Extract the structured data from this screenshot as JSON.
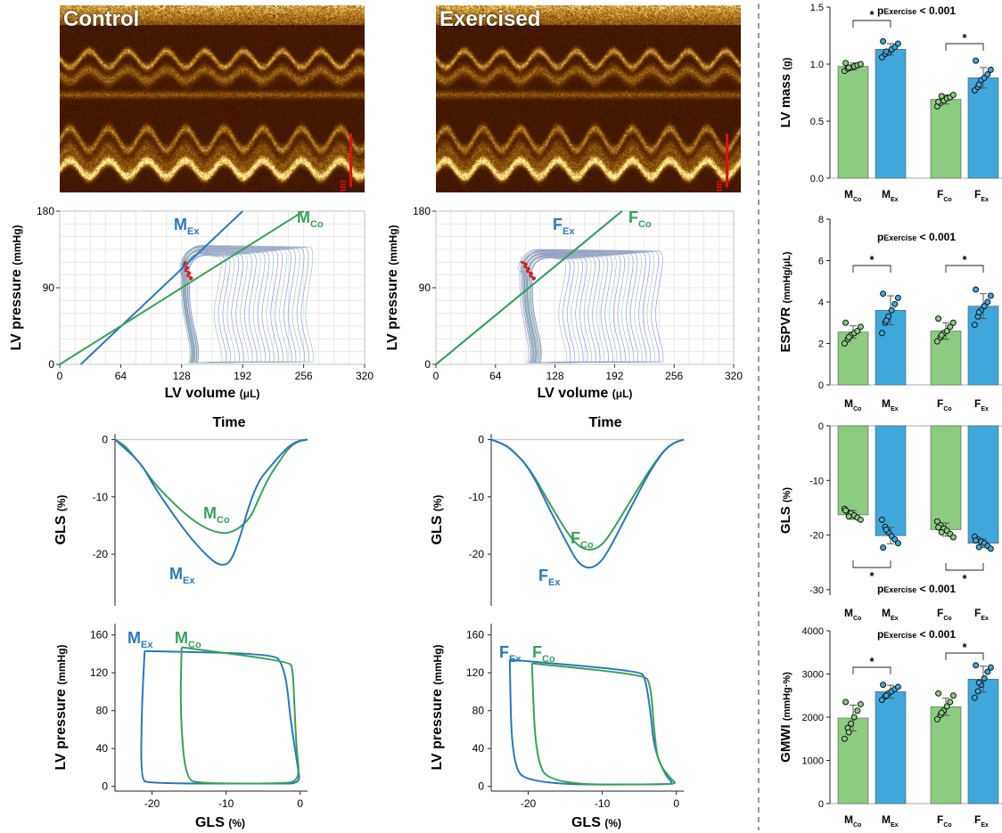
{
  "colors": {
    "male_exercised": "#2a78b8",
    "male_control": "#3aa05a",
    "female_exercised": "#2a78b8",
    "female_control": "#3aa05a",
    "bar_control": "#8ccc80",
    "bar_exercised": "#3ea8dc",
    "sig": "#000000"
  },
  "echo": {
    "left_label": "Control",
    "right_label": "Exercised",
    "scale_label": "5 mm"
  },
  "chart_data": [
    {
      "id": "pv-male",
      "type": "line",
      "xlabel": "LV volume",
      "xlabel_unit": "(μL)",
      "ylabel": "LV pressure",
      "ylabel_unit": "(mmHg)",
      "xticks": [
        "0",
        "64",
        "128",
        "192",
        "256",
        "320"
      ],
      "yticks": [
        "0",
        "90",
        "180"
      ],
      "xlim": [
        0,
        320
      ],
      "ylim": [
        0,
        180
      ],
      "series": [
        {
          "name": "M",
          "sub": "Ex",
          "color_key": "male_exercised",
          "line": {
            "x": [
              22,
              192
            ],
            "y": [
              0,
              180
            ]
          }
        },
        {
          "name": "M",
          "sub": "Co",
          "color_key": "male_control",
          "line": {
            "x": [
              0,
              256
            ],
            "y": [
              0,
              180
            ]
          }
        }
      ],
      "loops": {
        "count": 22,
        "ed_range": [
          172,
          268
        ],
        "es_range": [
          128,
          140
        ],
        "peak_range": [
          128,
          140
        ]
      }
    },
    {
      "id": "pv-female",
      "type": "line",
      "xlabel": "LV volume",
      "xlabel_unit": "(μL)",
      "ylabel": "LV pressure",
      "ylabel_unit": "(mmHg)",
      "xticks": [
        "0",
        "64",
        "128",
        "192",
        "256",
        "320"
      ],
      "yticks": [
        "0",
        "90",
        "180"
      ],
      "xlim": [
        0,
        320
      ],
      "ylim": [
        0,
        180
      ],
      "series": [
        {
          "name": "F",
          "sub": "Ex",
          "color_key": "female_exercised",
          "line": {
            "x": [
              0,
              200
            ],
            "y": [
              0,
              180
            ]
          }
        },
        {
          "name": "F",
          "sub": "Co",
          "color_key": "female_control",
          "line": {
            "x": [
              0,
              200
            ],
            "y": [
              0,
              180
            ]
          }
        }
      ],
      "loops": {
        "count": 24,
        "ed_range": [
          142,
          246
        ],
        "es_range": [
          92,
          110
        ],
        "peak_range": [
          125,
          135
        ]
      }
    },
    {
      "id": "gls-male",
      "type": "line",
      "title": "Time",
      "ylabel": "GLS",
      "ylabel_unit": "(%)",
      "yticks": [
        "0",
        "-10",
        "-20"
      ],
      "ylim": [
        -29,
        1
      ],
      "series": [
        {
          "name": "M",
          "sub": "Co",
          "color_key": "male_control",
          "x": [
            0,
            5,
            10,
            15,
            20,
            30,
            40,
            50,
            60,
            70,
            75,
            80,
            85,
            90,
            95,
            100
          ],
          "y": [
            0,
            -1,
            -3,
            -5,
            -7.5,
            -11,
            -14,
            -16,
            -16.5,
            -14,
            -10,
            -6.5,
            -4,
            -1.5,
            -0.3,
            0
          ]
        },
        {
          "name": "M",
          "sub": "Ex",
          "color_key": "male_exercised",
          "x": [
            0,
            5,
            10,
            15,
            20,
            30,
            40,
            50,
            55,
            60,
            65,
            70,
            75,
            80,
            85,
            90,
            95,
            100
          ],
          "y": [
            0,
            -1.5,
            -3,
            -5,
            -8,
            -13,
            -17.5,
            -21,
            -22,
            -21.5,
            -17,
            -11,
            -7,
            -5,
            -3,
            -1.2,
            -0.2,
            0
          ]
        }
      ]
    },
    {
      "id": "gls-female",
      "type": "line",
      "title": "Time",
      "ylabel": "GLS",
      "ylabel_unit": "(%)",
      "yticks": [
        "0",
        "-10",
        "-20"
      ],
      "ylim": [
        -29,
        1
      ],
      "series": [
        {
          "name": "F",
          "sub": "Co",
          "color_key": "female_control",
          "x": [
            0,
            5,
            10,
            20,
            30,
            40,
            45,
            50,
            55,
            60,
            70,
            80,
            85,
            90,
            95,
            100
          ],
          "y": [
            0,
            -0.6,
            -1.5,
            -5,
            -11,
            -16.5,
            -18.5,
            -19.3,
            -19,
            -17.5,
            -12,
            -6.5,
            -4,
            -1.8,
            -0.5,
            0
          ]
        },
        {
          "name": "F",
          "sub": "Ex",
          "color_key": "female_exercised",
          "x": [
            0,
            5,
            10,
            20,
            30,
            40,
            45,
            50,
            55,
            60,
            70,
            80,
            85,
            90,
            95,
            100
          ],
          "y": [
            0,
            -0.6,
            -1.5,
            -5,
            -12,
            -18.5,
            -21.5,
            -22.5,
            -22,
            -20,
            -13.5,
            -7,
            -4.2,
            -1.8,
            -0.5,
            0
          ]
        }
      ]
    },
    {
      "id": "pgls-male",
      "type": "line",
      "xlabel": "GLS",
      "xlabel_unit": "(%)",
      "ylabel": "LV pressure",
      "ylabel_unit": "(mmHg)",
      "xticks": [
        "-20",
        "-10",
        "0"
      ],
      "yticks": [
        "0",
        "40",
        "80",
        "120",
        "160"
      ],
      "xlim": [
        -25,
        1
      ],
      "ylim": [
        -5,
        172
      ],
      "series": [
        {
          "name": "M",
          "sub": "Ex",
          "color_key": "male_exercised",
          "x": [
            -21,
            -3.5,
            -2.5,
            -1.8,
            -1.3,
            -0.3,
            0,
            -3,
            -20.5,
            -21.5,
            -21.4,
            -21
          ],
          "y": [
            143,
            140,
            130,
            110,
            70,
            20,
            3,
            3,
            3,
            8,
            80,
            143
          ]
        },
        {
          "name": "M",
          "sub": "Co",
          "color_key": "male_control",
          "x": [
            -16,
            -1.5,
            -1,
            -0.8,
            -0.5,
            0,
            -3,
            -13.5,
            -15.5,
            -16.2,
            -16
          ],
          "y": [
            147,
            132,
            125,
            90,
            40,
            5,
            3,
            3,
            8,
            80,
            147
          ]
        }
      ]
    },
    {
      "id": "pgls-female",
      "type": "line",
      "xlabel": "GLS",
      "xlabel_unit": "(%)",
      "ylabel": "LV pressure",
      "ylabel_unit": "(mmHg)",
      "xticks": [
        "-20",
        "-10",
        "0"
      ],
      "yticks": [
        "0",
        "40",
        "80",
        "120",
        "160"
      ],
      "xlim": [
        -25,
        1
      ],
      "ylim": [
        -5,
        172
      ],
      "series": [
        {
          "name": "F",
          "sub": "Ex",
          "color_key": "female_exercised",
          "x": [
            -22.5,
            -5,
            -4.2,
            -3.5,
            -3,
            -1.5,
            -0.5,
            -1,
            -20,
            -22.2,
            -22.5
          ],
          "y": [
            134,
            122,
            115,
            80,
            40,
            12,
            4,
            2,
            2,
            25,
            134
          ]
        },
        {
          "name": "F",
          "sub": "Co",
          "color_key": "female_control",
          "x": [
            -19.5,
            -4.5,
            -3.5,
            -3,
            -2.5,
            -0.5,
            0,
            -2,
            -17,
            -19,
            -19.5
          ],
          "y": [
            130,
            118,
            110,
            60,
            25,
            6,
            3,
            2,
            2,
            30,
            130
          ]
        }
      ]
    },
    {
      "id": "lv-mass",
      "type": "bar",
      "ylabel": "LV mass",
      "ylabel_unit": "(g)",
      "ylim": [
        0,
        1.5
      ],
      "yticks": [
        "0.0",
        "0.5",
        "1.0",
        "1.5"
      ],
      "categories": [
        {
          "name": "M",
          "sub": "Co"
        },
        {
          "name": "M",
          "sub": "Ex"
        },
        {
          "name": "F",
          "sub": "Co"
        },
        {
          "name": "F",
          "sub": "Ex"
        }
      ],
      "values": [
        0.98,
        1.13,
        0.69,
        0.88
      ],
      "errors": [
        0.03,
        0.05,
        0.04,
        0.09
      ],
      "points": [
        [
          0.94,
          0.96,
          0.97,
          0.98,
          0.99,
          1.0,
          1.01,
          0.97
        ],
        [
          1.06,
          1.09,
          1.1,
          1.13,
          1.15,
          1.18,
          1.2,
          1.11
        ],
        [
          0.63,
          0.66,
          0.68,
          0.7,
          0.71,
          0.73,
          0.67,
          0.72
        ],
        [
          0.77,
          0.8,
          0.86,
          0.88,
          0.91,
          0.95,
          1.03,
          0.82
        ]
      ],
      "annotation": {
        "p_prefix": "p",
        "p_sub": "Exercise",
        "p_suffix": "< 0.001",
        "position": "top"
      },
      "sig_marker": "*"
    },
    {
      "id": "espvr",
      "type": "bar",
      "ylabel": "ESPVR",
      "ylabel_unit": "(mmHg/μL)",
      "ylim": [
        0,
        8
      ],
      "yticks": [
        "0",
        "2",
        "4",
        "6",
        "8"
      ],
      "categories": [
        {
          "name": "M",
          "sub": "Co"
        },
        {
          "name": "M",
          "sub": "Ex"
        },
        {
          "name": "F",
          "sub": "Co"
        },
        {
          "name": "F",
          "sub": "Ex"
        }
      ],
      "values": [
        2.55,
        3.6,
        2.6,
        3.8
      ],
      "errors": [
        0.3,
        0.7,
        0.4,
        0.6
      ],
      "points": [
        [
          2.0,
          2.2,
          2.4,
          2.5,
          2.6,
          2.8,
          3.0,
          2.3
        ],
        [
          2.5,
          3.0,
          3.3,
          3.6,
          3.9,
          4.2,
          4.4,
          3.1
        ],
        [
          2.1,
          2.3,
          2.5,
          2.6,
          2.8,
          3.0,
          3.2,
          2.4
        ],
        [
          2.9,
          3.3,
          3.6,
          3.8,
          4.0,
          4.3,
          4.6,
          3.5
        ]
      ],
      "annotation": {
        "p_prefix": "p",
        "p_sub": "Exercise",
        "p_suffix": "< 0.001",
        "position": "top"
      },
      "sig_marker": "*"
    },
    {
      "id": "gls-bar",
      "type": "bar",
      "ylabel": "GLS",
      "ylabel_unit": "(%)",
      "ylim": [
        -31,
        0
      ],
      "yticks": [
        "0",
        "-10",
        "-20",
        "-30"
      ],
      "categories": [
        {
          "name": "M",
          "sub": "Co"
        },
        {
          "name": "M",
          "sub": "Ex"
        },
        {
          "name": "F",
          "sub": "Co"
        },
        {
          "name": "F",
          "sub": "Ex"
        }
      ],
      "values": [
        -16.3,
        -20.1,
        -19.0,
        -21.5
      ],
      "errors": [
        0.8,
        1.5,
        1.2,
        0.8
      ],
      "points": [
        [
          -15.2,
          -15.8,
          -16.0,
          -16.4,
          -16.8,
          -17.2,
          -15.5,
          -16.6
        ],
        [
          -17.2,
          -18.5,
          -19.5,
          -20.2,
          -20.8,
          -21.5,
          -22.3,
          -19.0
        ],
        [
          -17.5,
          -18.2,
          -18.8,
          -19.2,
          -19.8,
          -20.4,
          -18.6,
          -19.5
        ],
        [
          -20.3,
          -20.8,
          -21.2,
          -21.5,
          -22.0,
          -22.5,
          -21.0,
          -22.2
        ]
      ],
      "annotation": {
        "p_prefix": "p",
        "p_sub": "Exercise",
        "p_suffix": "< 0.001",
        "position": "bottom"
      },
      "sig_marker": "*"
    },
    {
      "id": "gmwi",
      "type": "bar",
      "ylabel": "GMWI",
      "ylabel_unit": "(mmHg·%)",
      "ylim": [
        0,
        4000
      ],
      "yticks": [
        "0",
        "1000",
        "2000",
        "3000",
        "4000"
      ],
      "categories": [
        {
          "name": "M",
          "sub": "Co"
        },
        {
          "name": "M",
          "sub": "Ex"
        },
        {
          "name": "F",
          "sub": "Co"
        },
        {
          "name": "F",
          "sub": "Ex"
        }
      ],
      "values": [
        1980,
        2590,
        2240,
        2880
      ],
      "errors": [
        300,
        150,
        200,
        300
      ],
      "points": [
        [
          1500,
          1750,
          1850,
          2000,
          2150,
          2300,
          2350,
          1650
        ],
        [
          2400,
          2480,
          2550,
          2600,
          2650,
          2700,
          2750,
          2500
        ],
        [
          1950,
          2050,
          2150,
          2250,
          2350,
          2500,
          2550,
          2100
        ],
        [
          2450,
          2600,
          2750,
          2900,
          3050,
          3150,
          3200,
          2800
        ]
      ],
      "annotation": {
        "p_prefix": "p",
        "p_sub": "Exercise",
        "p_suffix": "< 0.001",
        "position": "top"
      },
      "sig_marker": "*"
    }
  ]
}
